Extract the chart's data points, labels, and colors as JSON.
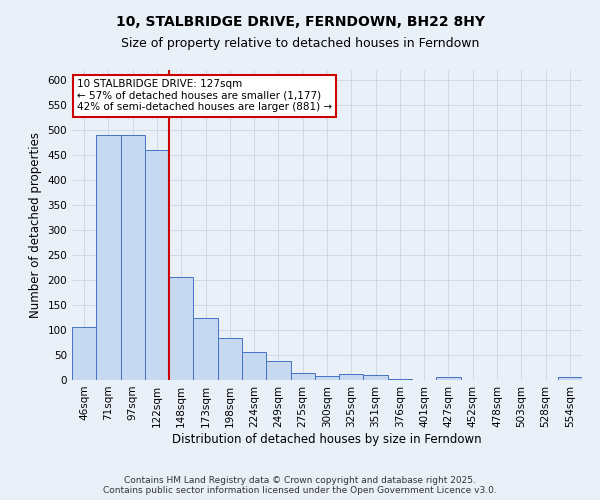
{
  "title": "10, STALBRIDGE DRIVE, FERNDOWN, BH22 8HY",
  "subtitle": "Size of property relative to detached houses in Ferndown",
  "xlabel": "Distribution of detached houses by size in Ferndown",
  "ylabel": "Number of detached properties",
  "categories": [
    "46sqm",
    "71sqm",
    "97sqm",
    "122sqm",
    "148sqm",
    "173sqm",
    "198sqm",
    "224sqm",
    "249sqm",
    "275sqm",
    "300sqm",
    "325sqm",
    "351sqm",
    "376sqm",
    "401sqm",
    "427sqm",
    "452sqm",
    "478sqm",
    "503sqm",
    "528sqm",
    "554sqm"
  ],
  "values": [
    106,
    490,
    490,
    460,
    207,
    124,
    85,
    57,
    38,
    15,
    9,
    12,
    10,
    3,
    1,
    7,
    1,
    0,
    0,
    0,
    6
  ],
  "bar_color": "#c6d9f0",
  "bar_edge_color": "#4472c4",
  "red_line_x": 3.5,
  "marker_label": "10 STALBRIDGE DRIVE: 127sqm",
  "annotation_line1": "← 57% of detached houses are smaller (1,177)",
  "annotation_line2": "42% of semi-detached houses are larger (881) →",
  "annotation_box_color": "#ffffff",
  "annotation_box_edge": "#cc0000",
  "grid_color": "#d0d8e8",
  "bg_color": "#eaf0f8",
  "footer": "Contains HM Land Registry data © Crown copyright and database right 2025.\nContains public sector information licensed under the Open Government Licence v3.0.",
  "ylim": [
    0,
    620
  ],
  "yticks": [
    0,
    50,
    100,
    150,
    200,
    250,
    300,
    350,
    400,
    450,
    500,
    550,
    600
  ],
  "title_fontsize": 10,
  "subtitle_fontsize": 9,
  "axis_label_fontsize": 8.5,
  "tick_fontsize": 7.5,
  "footer_fontsize": 6.5
}
